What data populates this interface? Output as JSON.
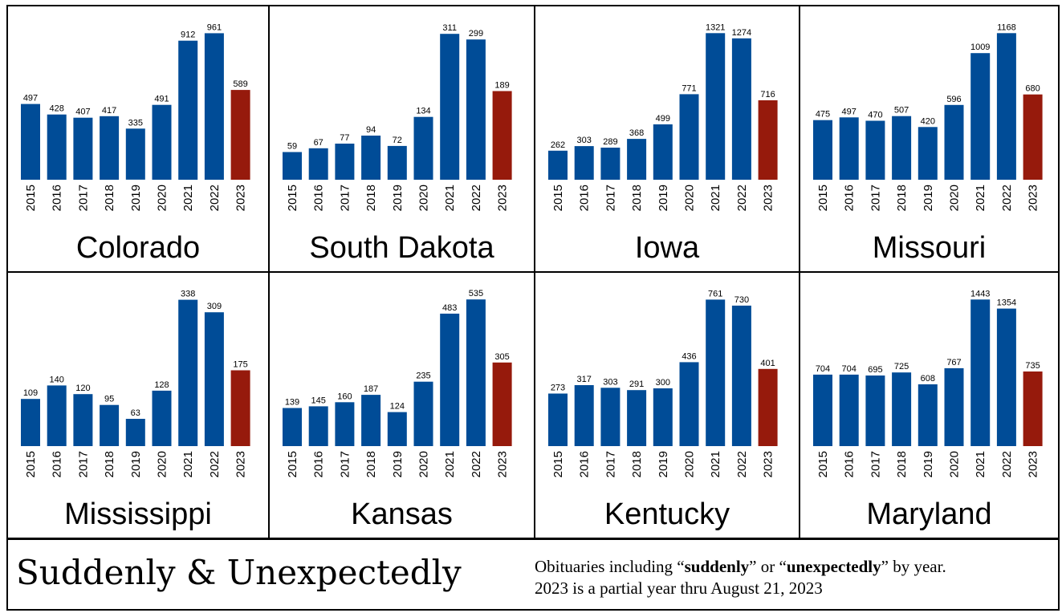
{
  "footer": {
    "title": "Suddenly & Unexpectedly",
    "note_line1_a": "Obituaries including “",
    "note_line1_b": "suddenly",
    "note_line1_c": "” or “",
    "note_line1_d": "unexpectedly",
    "note_line1_e": "” by year.",
    "note_line2": "2023 is a partial year thru August 21, 2023"
  },
  "colors": {
    "bar_regular": "#004c97",
    "bar_partial": "#961a0c"
  },
  "chart_data": [
    {
      "type": "bar",
      "title": "Colorado",
      "categories": [
        "2015",
        "2016",
        "2017",
        "2018",
        "2019",
        "2020",
        "2021",
        "2022",
        "2023"
      ],
      "values": [
        497,
        428,
        407,
        417,
        335,
        491,
        912,
        961,
        589
      ],
      "ylim": [
        0,
        1000
      ],
      "grid": false
    },
    {
      "type": "bar",
      "title": "South Dakota",
      "categories": [
        "2015",
        "2016",
        "2017",
        "2018",
        "2019",
        "2020",
        "2021",
        "2022",
        "2023"
      ],
      "values": [
        59,
        67,
        77,
        94,
        72,
        134,
        311,
        299,
        189
      ],
      "ylim": [
        0,
        325
      ],
      "grid": false
    },
    {
      "type": "bar",
      "title": "Iowa",
      "categories": [
        "2015",
        "2016",
        "2017",
        "2018",
        "2019",
        "2020",
        "2021",
        "2022",
        "2023"
      ],
      "values": [
        262,
        303,
        289,
        368,
        499,
        771,
        1321,
        1274,
        716
      ],
      "ylim": [
        0,
        1374
      ],
      "grid": false
    },
    {
      "type": "bar",
      "title": "Missouri",
      "categories": [
        "2015",
        "2016",
        "2017",
        "2018",
        "2019",
        "2020",
        "2021",
        "2022",
        "2023"
      ],
      "values": [
        475,
        497,
        470,
        507,
        420,
        596,
        1009,
        1168,
        680
      ],
      "ylim": [
        0,
        1215
      ],
      "grid": false
    },
    {
      "type": "bar",
      "title": "Mississippi",
      "categories": [
        "2015",
        "2016",
        "2017",
        "2018",
        "2019",
        "2020",
        "2021",
        "2022",
        "2023"
      ],
      "values": [
        109,
        140,
        120,
        95,
        63,
        128,
        338,
        309,
        175
      ],
      "ylim": [
        0,
        352
      ],
      "grid": false
    },
    {
      "type": "bar",
      "title": "Kansas",
      "categories": [
        "2015",
        "2016",
        "2017",
        "2018",
        "2019",
        "2020",
        "2021",
        "2022",
        "2023"
      ],
      "values": [
        139,
        145,
        160,
        187,
        124,
        235,
        483,
        535,
        305
      ],
      "ylim": [
        0,
        556
      ],
      "grid": false
    },
    {
      "type": "bar",
      "title": "Kentucky",
      "categories": [
        "2015",
        "2016",
        "2017",
        "2018",
        "2019",
        "2020",
        "2021",
        "2022",
        "2023"
      ],
      "values": [
        273,
        317,
        303,
        291,
        300,
        436,
        761,
        730,
        401
      ],
      "ylim": [
        0,
        792
      ],
      "grid": false
    },
    {
      "type": "bar",
      "title": "Maryland",
      "categories": [
        "2015",
        "2016",
        "2017",
        "2018",
        "2019",
        "2020",
        "2021",
        "2022",
        "2023"
      ],
      "values": [
        704,
        704,
        695,
        725,
        608,
        767,
        1443,
        1354,
        735
      ],
      "ylim": [
        0,
        1501
      ],
      "grid": false
    }
  ]
}
